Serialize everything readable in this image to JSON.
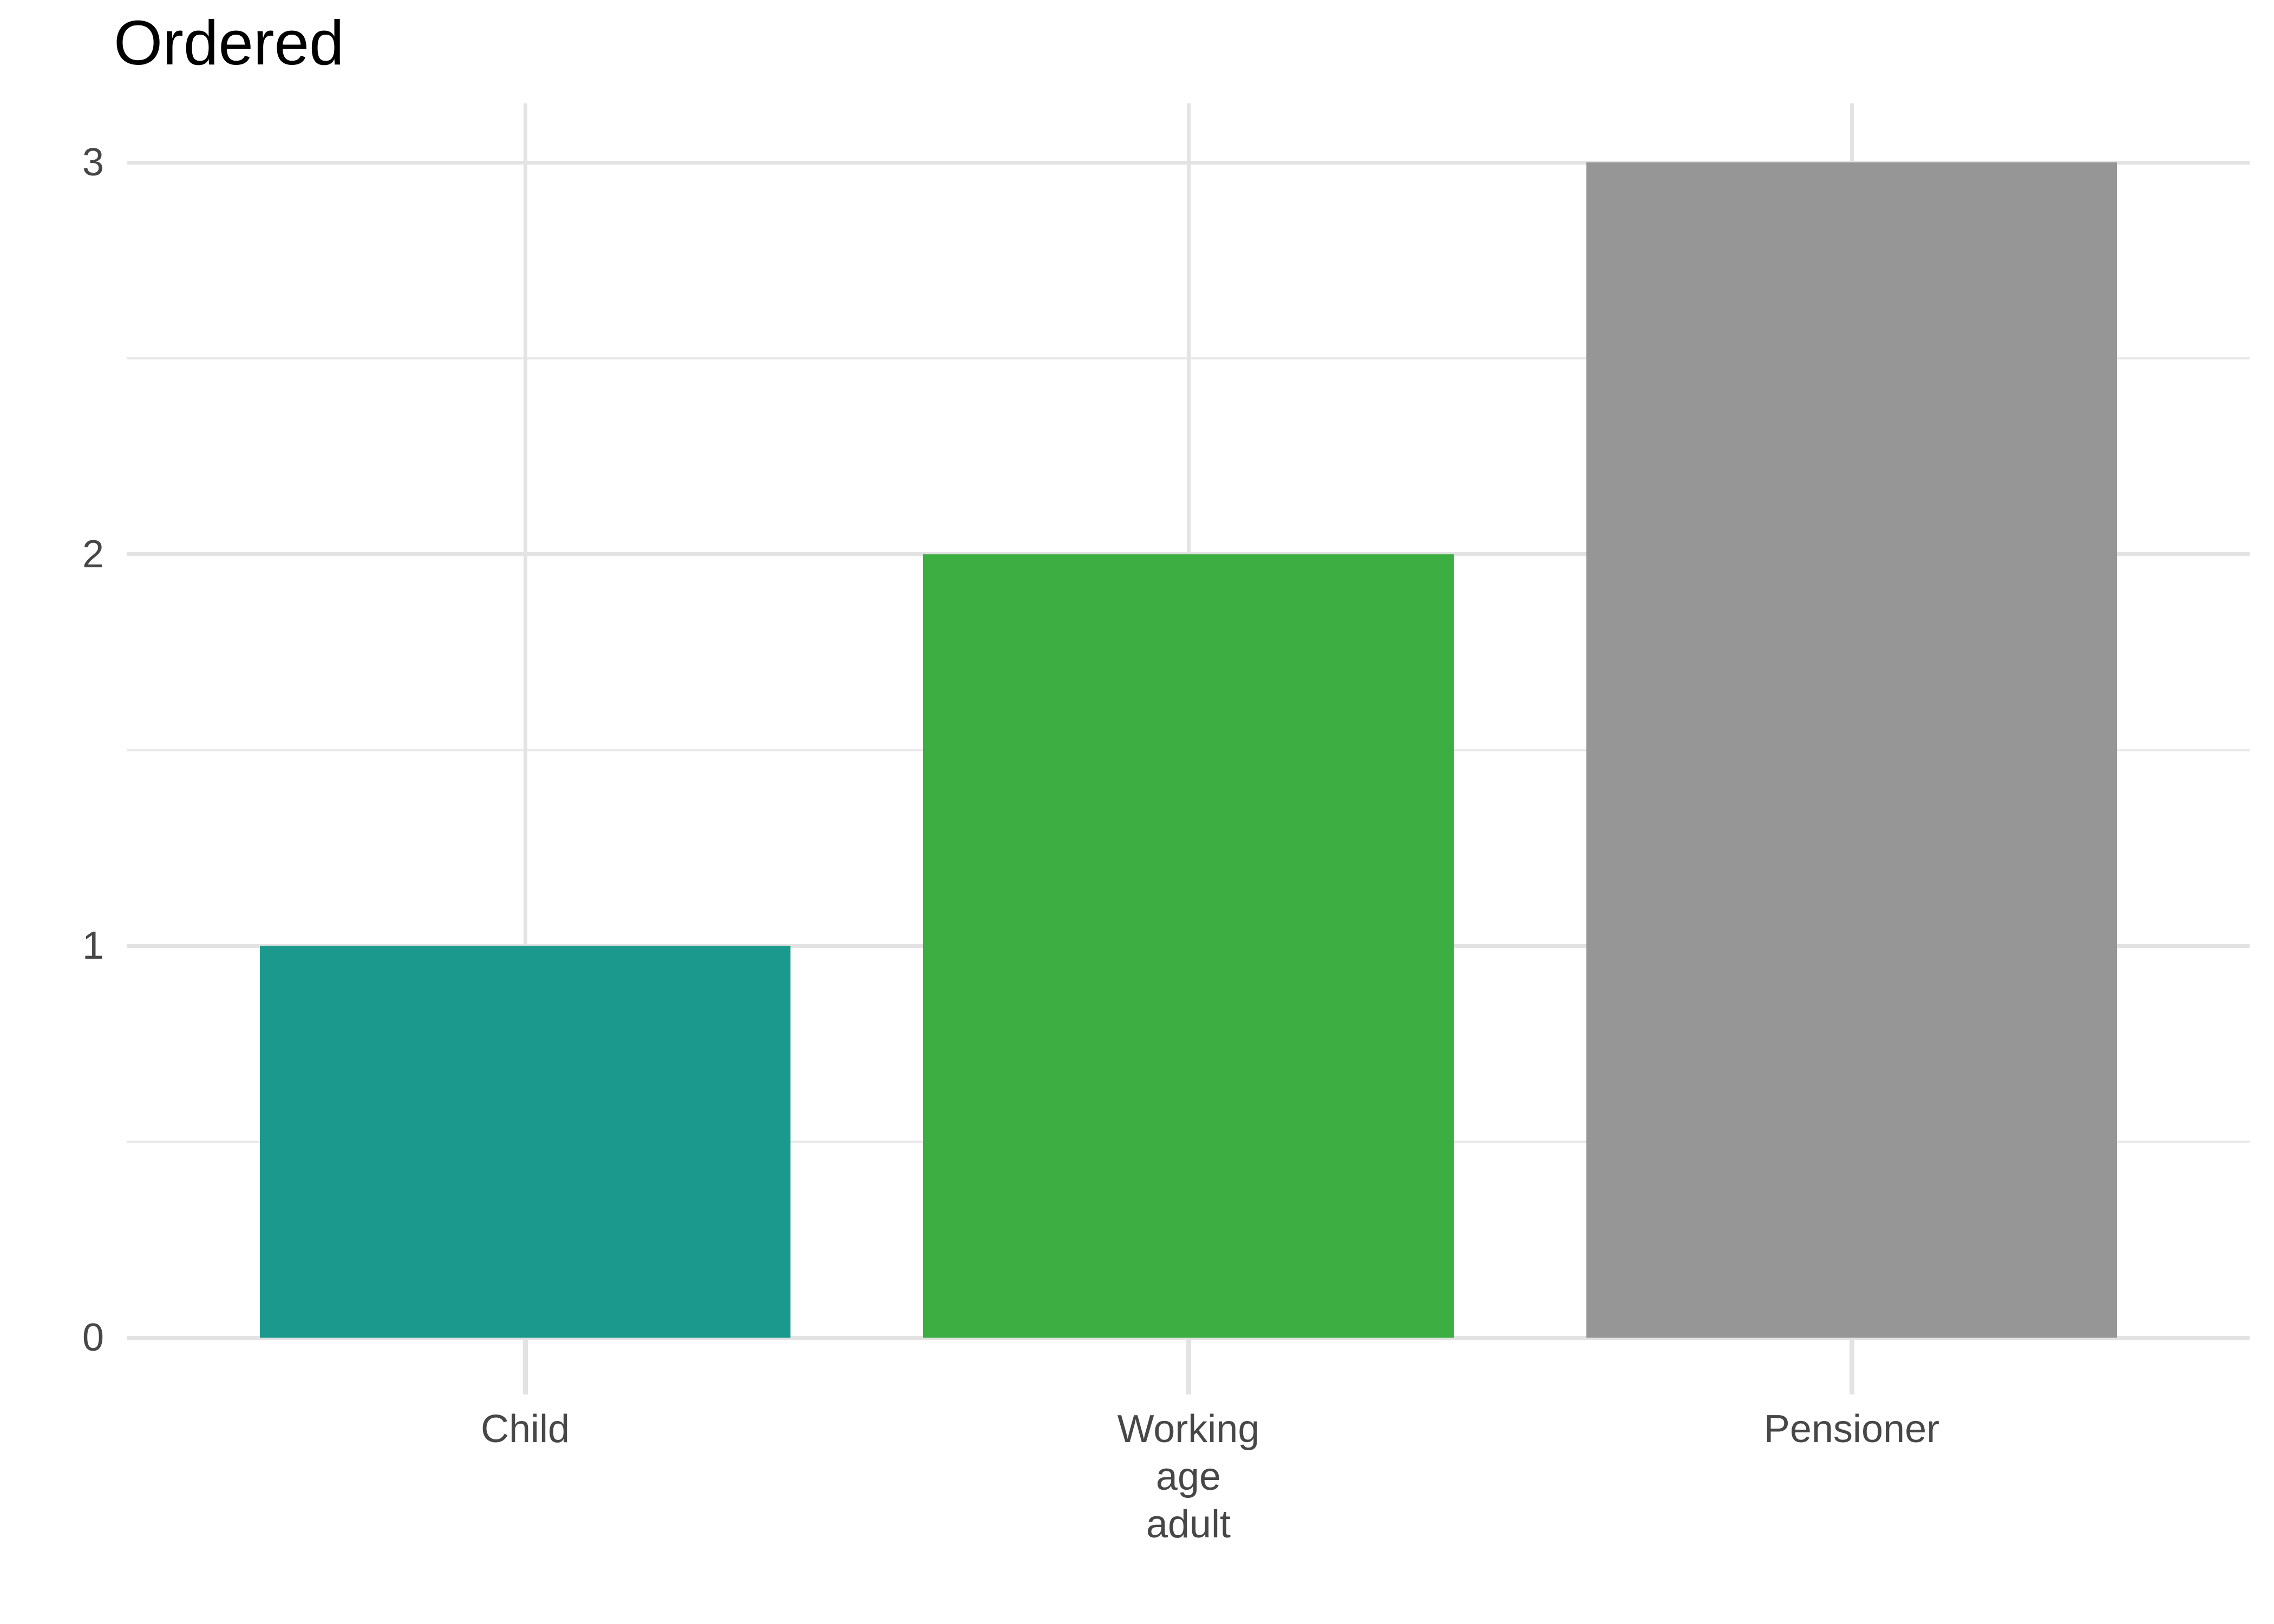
{
  "chart_data": {
    "type": "bar",
    "title": "Ordered",
    "categories": [
      "Child",
      "Working age adult",
      "Pensioner"
    ],
    "category_label_lines": [
      [
        "Child"
      ],
      [
        "Working",
        "age",
        "adult"
      ],
      [
        "Pensioner"
      ]
    ],
    "values": [
      1,
      2,
      3
    ],
    "bar_colors": [
      "#1B998C",
      "#3CAE42",
      "#969696"
    ],
    "xlabel": "",
    "ylabel": "",
    "ylim": [
      0,
      3.15
    ],
    "yticks": [
      0,
      1,
      2,
      3
    ],
    "yticklabels": [
      "0",
      "1",
      "2",
      "3"
    ],
    "minor_yticks": [
      0.5,
      1.5,
      2.5
    ],
    "grid": "horizontal major and minor lines; vertical major line at each category center; no axis lines",
    "legend": "none",
    "colors": {
      "grid_major": "#E3E3E3",
      "grid_minor": "#E9E9E9",
      "axis_tick": "#E3E3E3",
      "tick_label_text": "#474747",
      "title_text": "#000000",
      "background": "#FFFFFF"
    }
  }
}
